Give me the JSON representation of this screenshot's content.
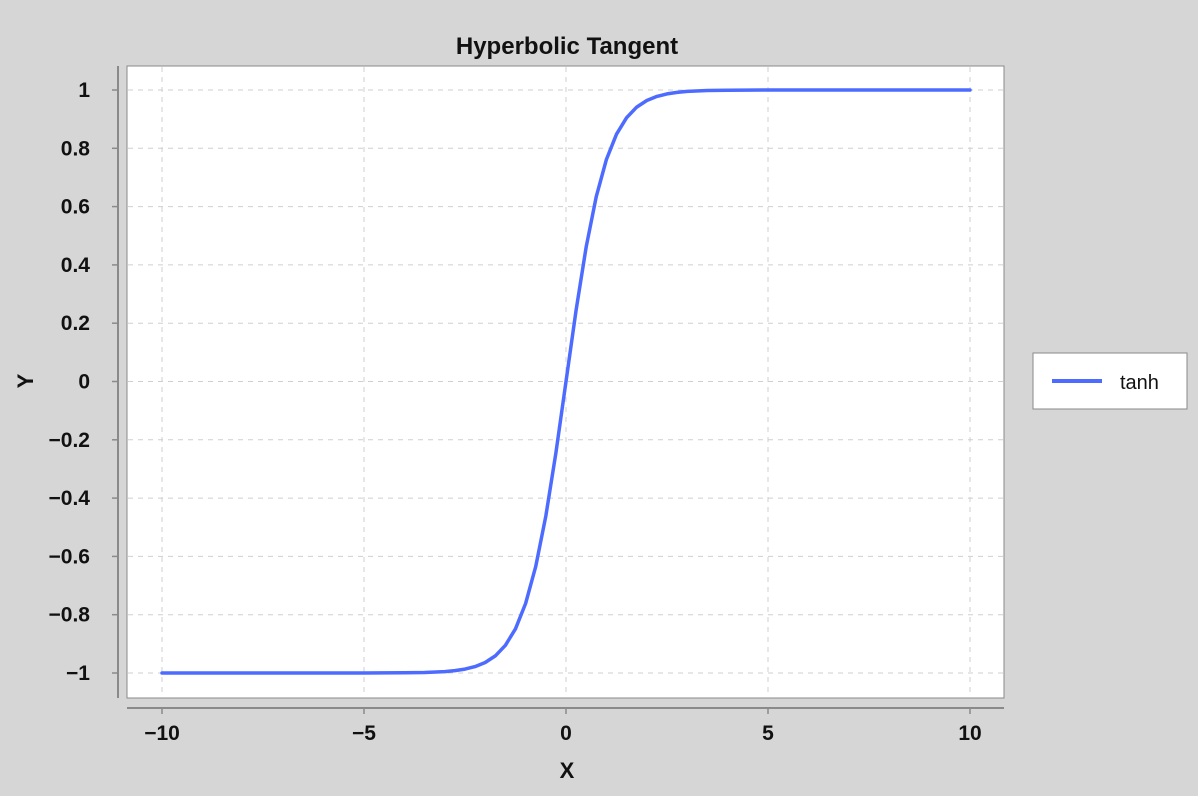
{
  "chart_data": {
    "type": "line",
    "title": "Hyperbolic Tangent",
    "xlabel": "X",
    "ylabel": "Y",
    "xlim": [
      -10,
      10
    ],
    "ylim": [
      -1,
      1
    ],
    "x_ticks": [
      -10,
      -5,
      0,
      5,
      10
    ],
    "x_tick_labels": [
      "−10",
      "−5",
      "0",
      "5",
      "10"
    ],
    "y_ticks": [
      1,
      0.8,
      0.6,
      0.4,
      0.2,
      0,
      -0.2,
      -0.4,
      -0.6,
      -0.8,
      -1
    ],
    "y_tick_labels": [
      "1",
      "0.8",
      "0.6",
      "0.4",
      "0.2",
      "0",
      "−0.2",
      "−0.4",
      "−0.6",
      "−0.8",
      "−1"
    ],
    "grid": true,
    "legend_position": "right",
    "series": [
      {
        "name": "tanh",
        "color": "#4d6cff",
        "x": [
          -10,
          -9,
          -8,
          -7,
          -6,
          -5,
          -4,
          -3.5,
          -3,
          -2.75,
          -2.5,
          -2.25,
          -2,
          -1.75,
          -1.5,
          -1.25,
          -1,
          -0.75,
          -0.5,
          -0.25,
          0,
          0.25,
          0.5,
          0.75,
          1,
          1.25,
          1.5,
          1.75,
          2,
          2.25,
          2.5,
          2.75,
          3,
          3.5,
          4,
          5,
          6,
          7,
          8,
          9,
          10
        ],
        "y": [
          -1,
          -1,
          -1,
          -1,
          -1,
          -0.9999,
          -0.9993,
          -0.9982,
          -0.9951,
          -0.9918,
          -0.9866,
          -0.978,
          -0.964,
          -0.9414,
          -0.9051,
          -0.8483,
          -0.7616,
          -0.6351,
          -0.4621,
          -0.2449,
          0,
          0.2449,
          0.4621,
          0.6351,
          0.7616,
          0.8483,
          0.9051,
          0.9414,
          0.964,
          0.978,
          0.9866,
          0.9918,
          0.9951,
          0.9982,
          0.9993,
          0.9999,
          1,
          1,
          1,
          1,
          1
        ]
      }
    ]
  }
}
